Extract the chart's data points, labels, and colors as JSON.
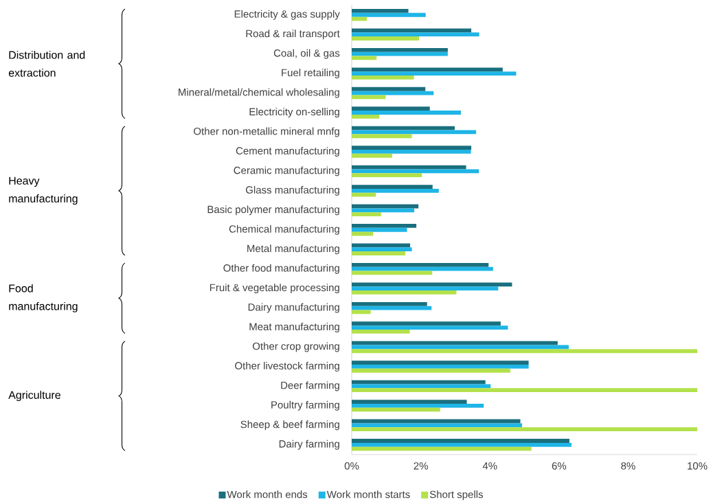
{
  "chart_data": {
    "type": "bar",
    "orientation": "horizontal",
    "categories": [
      "Electricity & gas supply",
      "Road & rail transport",
      "Coal, oil & gas",
      "Fuel retailing",
      "Mineral/metal/chemical wholesaling",
      "Electricity on-selling",
      "Other non-metallic mineral mnfg",
      "Cement manufacturing",
      "Ceramic manufacturing",
      "Glass manufacturing",
      "Basic polymer manufacturing",
      "Chemical manufacturing",
      "Metal manufacturing",
      "Other food manufacturing",
      "Fruit & vegetable processing",
      "Dairy manufacturing",
      "Meat manufacturing",
      "Other crop growing",
      "Other livestock farming",
      "Deer farming",
      "Poultry farming",
      "Sheep & beef farming",
      "Dairy farming"
    ],
    "series": [
      {
        "name": "Work month ends",
        "color": "#1a6f7e",
        "values": [
          1.64,
          3.46,
          2.78,
          4.37,
          2.13,
          2.26,
          2.98,
          3.46,
          3.31,
          2.34,
          1.93,
          1.87,
          1.69,
          3.96,
          4.64,
          2.18,
          4.31,
          5.96,
          5.12,
          3.87,
          3.33,
          4.88,
          6.3
        ]
      },
      {
        "name": "Work month starts",
        "color": "#1fb5e6",
        "values": [
          2.14,
          3.69,
          2.78,
          4.76,
          2.37,
          3.16,
          3.6,
          3.45,
          3.68,
          2.52,
          1.81,
          1.6,
          1.74,
          4.09,
          4.24,
          2.31,
          4.52,
          6.28,
          5.12,
          4.02,
          3.82,
          4.93,
          6.36
        ]
      },
      {
        "name": "Short spells",
        "color": "#b3e14b",
        "values": [
          0.44,
          1.95,
          0.72,
          1.8,
          0.98,
          0.8,
          1.74,
          1.17,
          2.03,
          0.7,
          0.85,
          0.62,
          1.55,
          2.33,
          3.03,
          0.55,
          1.68,
          10,
          4.59,
          10,
          2.56,
          10,
          5.2
        ]
      }
    ],
    "xlim": [
      0,
      10
    ],
    "xticks": [
      {
        "value": 0,
        "label": "0%"
      },
      {
        "value": 2,
        "label": "2%"
      },
      {
        "value": 4,
        "label": "4%"
      },
      {
        "value": 6,
        "label": "6%"
      },
      {
        "value": 8,
        "label": "8%"
      },
      {
        "value": 10,
        "label": "10%"
      }
    ],
    "legend": "bottom",
    "annotations": [
      "Distribution and extraction",
      "Heavy manufacturing",
      "Food manufacturing",
      "Agriculture"
    ]
  }
}
